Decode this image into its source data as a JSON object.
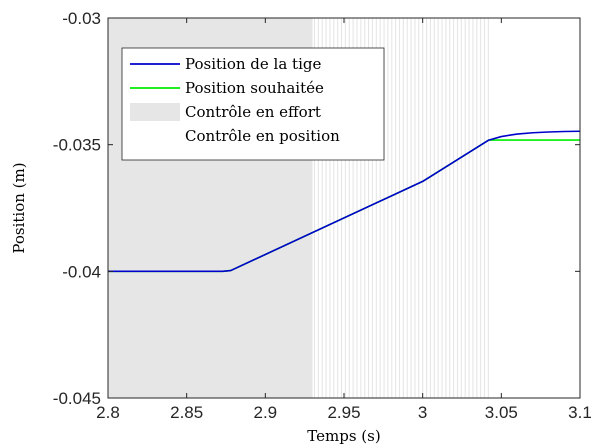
{
  "chart_data": {
    "type": "line",
    "xlabel": "Temps (s)",
    "ylabel": "Position (m)",
    "xlim": [
      2.8,
      3.1
    ],
    "ylim": [
      -0.045,
      -0.03
    ],
    "x_ticks": [
      2.8,
      2.85,
      2.9,
      2.95,
      3.0,
      3.05,
      3.1
    ],
    "x_tick_labels": [
      "2.8",
      "2.85",
      "2.9",
      "2.95",
      "3",
      "3.05",
      "3.1"
    ],
    "y_ticks": [
      -0.045,
      -0.04,
      -0.035,
      -0.03
    ],
    "y_tick_labels": [
      "-0.045",
      "-0.04",
      "-0.035",
      "-0.03"
    ],
    "grid": false,
    "legend_position": "top-left",
    "series": [
      {
        "name": "Position de la tige",
        "color": "#0000cc",
        "x": [
          2.8,
          2.873,
          2.878,
          3.0,
          3.042,
          3.05,
          3.06,
          3.07,
          3.08,
          3.09,
          3.1
        ],
        "y": [
          -0.04,
          -0.04,
          -0.03997,
          -0.03645,
          -0.03482,
          -0.03468,
          -0.03458,
          -0.03453,
          -0.0345,
          -0.03448,
          -0.03447
        ]
      },
      {
        "name": "Position souhaitée",
        "color": "#00ee00",
        "x": [
          2.8,
          2.873,
          2.878,
          3.0,
          3.042,
          3.1
        ],
        "y": [
          -0.04,
          -0.04,
          -0.03997,
          -0.03645,
          -0.03482,
          -0.03482
        ]
      }
    ],
    "regions": [
      {
        "name": "Contrôle en effort",
        "color": "#e6e6e6",
        "x_start": 2.8,
        "x_end": 2.93
      },
      {
        "name": "Contrôle en position",
        "color": "#ffffff"
      }
    ],
    "switching_interval": [
      2.93,
      3.043
    ],
    "legend": {
      "entries": [
        "Position de la tige",
        "Position souhaitée",
        "Contrôle en effort",
        "Contrôle en position"
      ]
    }
  }
}
